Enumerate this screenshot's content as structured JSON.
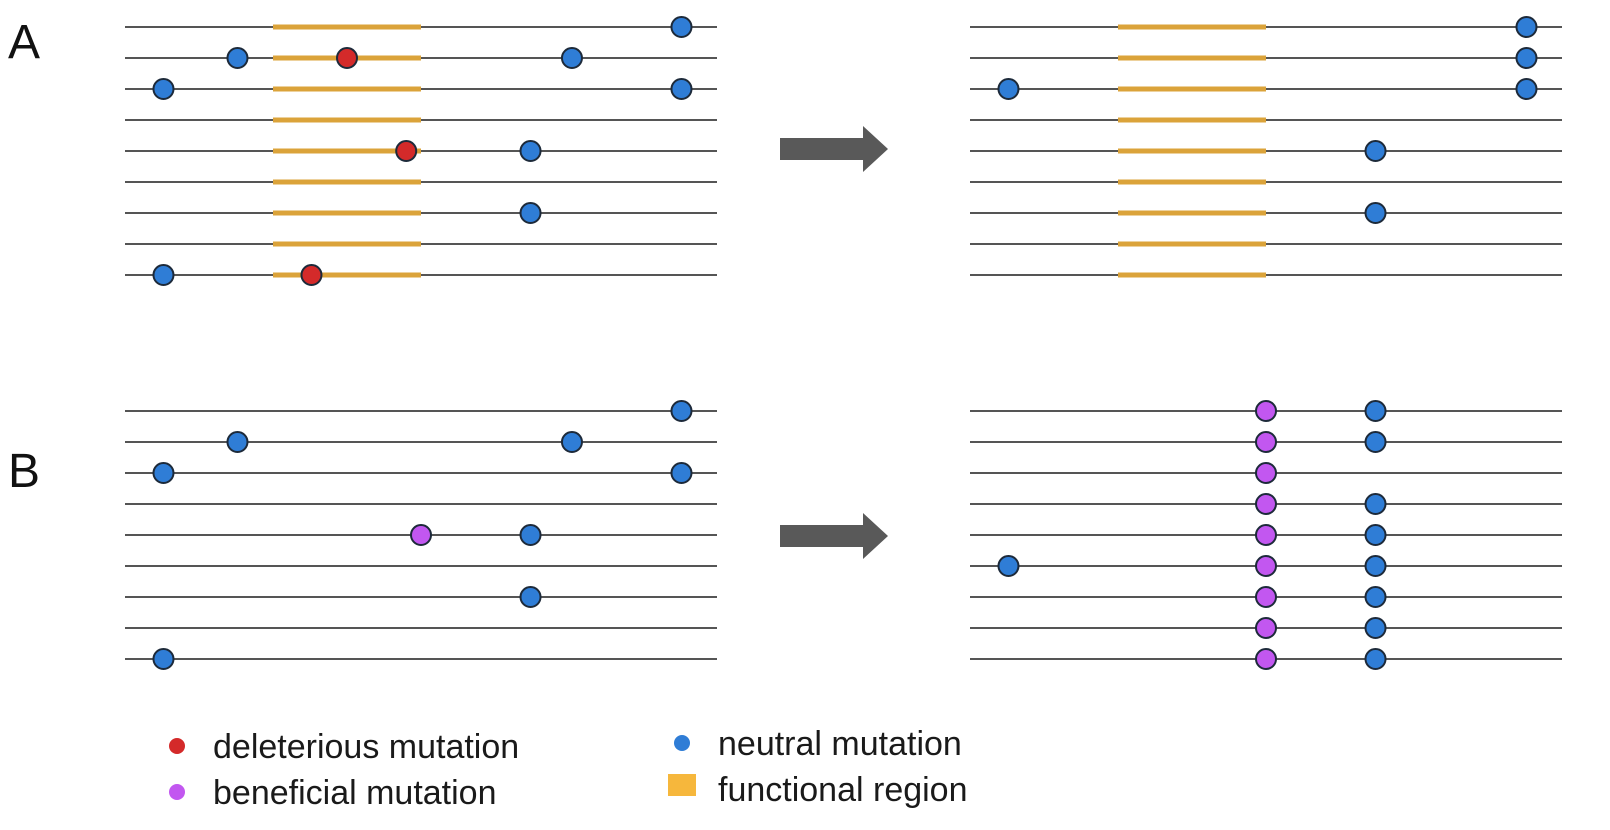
{
  "panels": [
    {
      "label": "A",
      "before": {
        "functional_region": {
          "start": 0.25,
          "end": 0.5
        },
        "sequences": [
          {
            "functional": true,
            "mutations": [
              {
                "type": "neutral",
                "pos": 0.94
              }
            ]
          },
          {
            "functional": true,
            "mutations": [
              {
                "type": "neutral",
                "pos": 0.19
              },
              {
                "type": "deleterious",
                "pos": 0.375
              },
              {
                "type": "neutral",
                "pos": 0.755
              }
            ]
          },
          {
            "functional": true,
            "mutations": [
              {
                "type": "neutral",
                "pos": 0.065
              },
              {
                "type": "neutral",
                "pos": 0.94
              }
            ]
          },
          {
            "functional": true,
            "mutations": []
          },
          {
            "functional": true,
            "mutations": [
              {
                "type": "deleterious",
                "pos": 0.475
              },
              {
                "type": "neutral",
                "pos": 0.685
              }
            ]
          },
          {
            "functional": true,
            "mutations": []
          },
          {
            "functional": true,
            "mutations": [
              {
                "type": "neutral",
                "pos": 0.685
              }
            ]
          },
          {
            "functional": true,
            "mutations": []
          },
          {
            "functional": true,
            "mutations": [
              {
                "type": "neutral",
                "pos": 0.065
              },
              {
                "type": "deleterious",
                "pos": 0.315
              }
            ]
          }
        ]
      },
      "after": {
        "functional_region": {
          "start": 0.25,
          "end": 0.5
        },
        "sequences": [
          {
            "functional": true,
            "mutations": [
              {
                "type": "neutral",
                "pos": 0.94
              }
            ]
          },
          {
            "functional": true,
            "mutations": [
              {
                "type": "neutral",
                "pos": 0.94
              }
            ]
          },
          {
            "functional": true,
            "mutations": [
              {
                "type": "neutral",
                "pos": 0.065
              },
              {
                "type": "neutral",
                "pos": 0.94
              }
            ]
          },
          {
            "functional": true,
            "mutations": []
          },
          {
            "functional": true,
            "mutations": [
              {
                "type": "neutral",
                "pos": 0.685
              }
            ]
          },
          {
            "functional": true,
            "mutations": []
          },
          {
            "functional": true,
            "mutations": [
              {
                "type": "neutral",
                "pos": 0.685
              }
            ]
          },
          {
            "functional": true,
            "mutations": []
          },
          {
            "functional": true,
            "mutations": []
          }
        ]
      }
    },
    {
      "label": "B",
      "before": {
        "functional_region": null,
        "sequences": [
          {
            "functional": false,
            "mutations": [
              {
                "type": "neutral",
                "pos": 0.94
              }
            ]
          },
          {
            "functional": false,
            "mutations": [
              {
                "type": "neutral",
                "pos": 0.19
              },
              {
                "type": "neutral",
                "pos": 0.755
              }
            ]
          },
          {
            "functional": false,
            "mutations": [
              {
                "type": "neutral",
                "pos": 0.065
              },
              {
                "type": "neutral",
                "pos": 0.94
              }
            ]
          },
          {
            "functional": false,
            "mutations": []
          },
          {
            "functional": false,
            "mutations": [
              {
                "type": "beneficial",
                "pos": 0.5
              },
              {
                "type": "neutral",
                "pos": 0.685
              }
            ]
          },
          {
            "functional": false,
            "mutations": []
          },
          {
            "functional": false,
            "mutations": [
              {
                "type": "neutral",
                "pos": 0.685
              }
            ]
          },
          {
            "functional": false,
            "mutations": []
          },
          {
            "functional": false,
            "mutations": [
              {
                "type": "neutral",
                "pos": 0.065
              }
            ]
          }
        ]
      },
      "after": {
        "functional_region": null,
        "sequences": [
          {
            "functional": false,
            "mutations": [
              {
                "type": "beneficial",
                "pos": 0.5
              },
              {
                "type": "neutral",
                "pos": 0.685
              }
            ]
          },
          {
            "functional": false,
            "mutations": [
              {
                "type": "beneficial",
                "pos": 0.5
              },
              {
                "type": "neutral",
                "pos": 0.685
              }
            ]
          },
          {
            "functional": false,
            "mutations": [
              {
                "type": "beneficial",
                "pos": 0.5
              }
            ]
          },
          {
            "functional": false,
            "mutations": [
              {
                "type": "beneficial",
                "pos": 0.5
              },
              {
                "type": "neutral",
                "pos": 0.685
              }
            ]
          },
          {
            "functional": false,
            "mutations": [
              {
                "type": "beneficial",
                "pos": 0.5
              },
              {
                "type": "neutral",
                "pos": 0.685
              }
            ]
          },
          {
            "functional": false,
            "mutations": [
              {
                "type": "neutral",
                "pos": 0.065
              },
              {
                "type": "beneficial",
                "pos": 0.5
              },
              {
                "type": "neutral",
                "pos": 0.685
              }
            ]
          },
          {
            "functional": false,
            "mutations": [
              {
                "type": "beneficial",
                "pos": 0.5
              },
              {
                "type": "neutral",
                "pos": 0.685
              }
            ]
          },
          {
            "functional": false,
            "mutations": [
              {
                "type": "beneficial",
                "pos": 0.5
              },
              {
                "type": "neutral",
                "pos": 0.685
              }
            ]
          },
          {
            "functional": false,
            "mutations": [
              {
                "type": "beneficial",
                "pos": 0.5
              },
              {
                "type": "neutral",
                "pos": 0.685
              }
            ]
          }
        ]
      }
    }
  ],
  "arrow_icon": "right-arrow-icon",
  "colors": {
    "deleterious": "#d42a2a",
    "neutral": "#2f7dd6",
    "beneficial": "#c257f0",
    "functional_region": "#dba33a",
    "legend_functional_region": "#f6b73c",
    "line": "#555555",
    "arrow": "#595959"
  },
  "legend": {
    "deleterious": "deleterious mutation",
    "beneficial": "beneficial mutation",
    "neutral": "neutral mutation",
    "functional_region": "functional region"
  }
}
